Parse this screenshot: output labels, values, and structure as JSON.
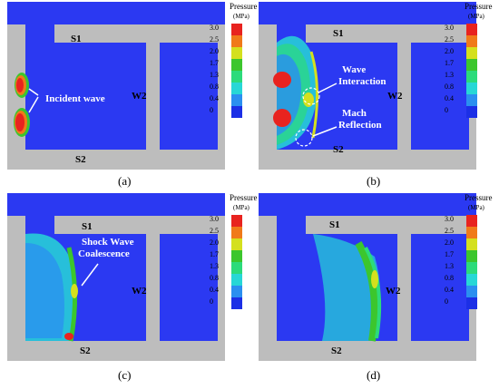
{
  "colorbar": {
    "title": "Pressure",
    "unit": "(MPa)",
    "ticks": [
      "3.0",
      "2.5",
      "2.0",
      "1.7",
      "1.3",
      "0.8",
      "0.4",
      "0"
    ],
    "colors": [
      "#e8231f",
      "#f07a1a",
      "#d4e01e",
      "#3cc62d",
      "#2cdb7b",
      "#27d7d6",
      "#2b8ff0",
      "#1c2fe6"
    ]
  },
  "colors": {
    "domain_blue": "#2b39f2",
    "wall_gray": "#bdbdbd"
  },
  "panels": [
    {
      "caption": "(a)",
      "labels": {
        "s1": "S1",
        "s2": "S2",
        "w2": "W2"
      },
      "annotations": [
        "Incident wave"
      ]
    },
    {
      "caption": "(b)",
      "labels": {
        "s1": "S1",
        "s2": "S2",
        "w2": "W2"
      },
      "annotations": [
        "Wave",
        "Interaction",
        "Mach",
        "Reflection"
      ]
    },
    {
      "caption": "(c)",
      "labels": {
        "s1": "S1",
        "s2": "S2",
        "w2": "W2"
      },
      "annotations": [
        "Shock Wave",
        "Coalescence"
      ]
    },
    {
      "caption": "(d)",
      "labels": {
        "s1": "S1",
        "s2": "S2",
        "w2": "W2"
      },
      "annotations": []
    }
  ]
}
